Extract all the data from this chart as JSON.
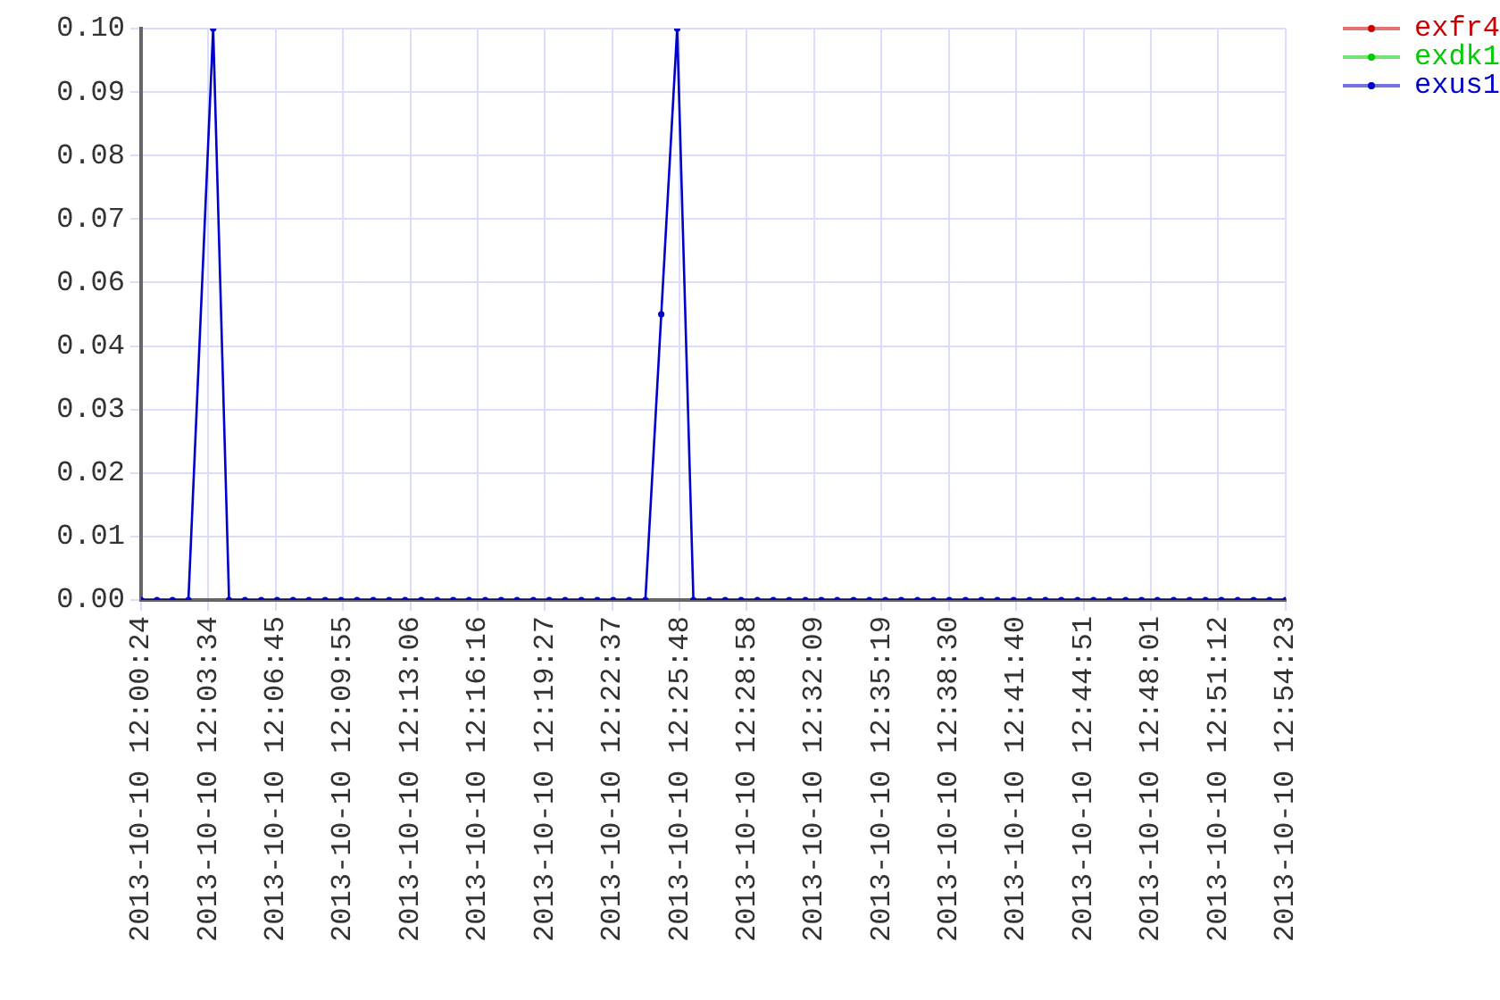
{
  "chart_data": {
    "type": "line",
    "x": [
      "2013-10-10T12:00:24",
      "2013-10-10T12:01:09",
      "2013-10-10T12:01:53",
      "2013-10-10T12:02:38",
      "2013-10-10T12:03:48",
      "2013-10-10T12:04:33",
      "2013-10-10T12:05:18",
      "2013-10-10T12:06:04",
      "2013-10-10T12:06:49",
      "2013-10-10T12:07:34",
      "2013-10-10T12:08:19",
      "2013-10-10T12:09:05",
      "2013-10-10T12:09:50",
      "2013-10-10T12:10:35",
      "2013-10-10T12:11:21",
      "2013-10-10T12:12:06",
      "2013-10-10T12:12:51",
      "2013-10-10T12:13:37",
      "2013-10-10T12:14:22",
      "2013-10-10T12:15:07",
      "2013-10-10T12:15:52",
      "2013-10-10T12:16:38",
      "2013-10-10T12:17:23",
      "2013-10-10T12:18:08",
      "2013-10-10T12:18:54",
      "2013-10-10T12:19:39",
      "2013-10-10T12:20:24",
      "2013-10-10T12:21:10",
      "2013-10-10T12:21:55",
      "2013-10-10T12:22:40",
      "2013-10-10T12:23:25",
      "2013-10-10T12:24:11",
      "2013-10-10T12:24:56",
      "2013-10-10T12:25:41",
      "2013-10-10T12:26:27",
      "2013-10-10T12:27:12",
      "2013-10-10T12:27:57",
      "2013-10-10T12:28:42",
      "2013-10-10T12:29:28",
      "2013-10-10T12:30:13",
      "2013-10-10T12:30:58",
      "2013-10-10T12:31:44",
      "2013-10-10T12:32:29",
      "2013-10-10T12:33:14",
      "2013-10-10T12:34:00",
      "2013-10-10T12:34:45",
      "2013-10-10T12:35:30",
      "2013-10-10T12:36:15",
      "2013-10-10T12:37:01",
      "2013-10-10T12:37:46",
      "2013-10-10T12:38:31",
      "2013-10-10T12:39:17",
      "2013-10-10T12:40:02",
      "2013-10-10T12:40:47",
      "2013-10-10T12:41:33",
      "2013-10-10T12:42:18",
      "2013-10-10T12:43:03",
      "2013-10-10T12:43:48",
      "2013-10-10T12:44:34",
      "2013-10-10T12:45:19",
      "2013-10-10T12:46:04",
      "2013-10-10T12:46:50",
      "2013-10-10T12:47:35",
      "2013-10-10T12:48:20",
      "2013-10-10T12:49:06",
      "2013-10-10T12:49:51",
      "2013-10-10T12:50:36",
      "2013-10-10T12:51:21",
      "2013-10-10T12:52:07",
      "2013-10-10T12:52:52",
      "2013-10-10T12:53:37",
      "2013-10-10T12:54:23"
    ],
    "xlim": [
      "2013-10-10T12:00:24",
      "2013-10-10T12:54:23"
    ],
    "xticks": [
      {
        "value": "2013-10-10T12:00:24",
        "label": "2013-10-10 12:00:24"
      },
      {
        "value": "2013-10-10T12:03:34",
        "label": "2013-10-10 12:03:34"
      },
      {
        "value": "2013-10-10T12:06:45",
        "label": "2013-10-10 12:06:45"
      },
      {
        "value": "2013-10-10T12:09:55",
        "label": "2013-10-10 12:09:55"
      },
      {
        "value": "2013-10-10T12:13:06",
        "label": "2013-10-10 12:13:06"
      },
      {
        "value": "2013-10-10T12:16:16",
        "label": "2013-10-10 12:16:16"
      },
      {
        "value": "2013-10-10T12:19:27",
        "label": "2013-10-10 12:19:27"
      },
      {
        "value": "2013-10-10T12:22:37",
        "label": "2013-10-10 12:22:37"
      },
      {
        "value": "2013-10-10T12:25:48",
        "label": "2013-10-10 12:25:48"
      },
      {
        "value": "2013-10-10T12:28:58",
        "label": "2013-10-10 12:28:58"
      },
      {
        "value": "2013-10-10T12:32:09",
        "label": "2013-10-10 12:32:09"
      },
      {
        "value": "2013-10-10T12:35:19",
        "label": "2013-10-10 12:35:19"
      },
      {
        "value": "2013-10-10T12:38:30",
        "label": "2013-10-10 12:38:30"
      },
      {
        "value": "2013-10-10T12:41:40",
        "label": "2013-10-10 12:41:40"
      },
      {
        "value": "2013-10-10T12:44:51",
        "label": "2013-10-10 12:44:51"
      },
      {
        "value": "2013-10-10T12:48:01",
        "label": "2013-10-10 12:48:01"
      },
      {
        "value": "2013-10-10T12:51:12",
        "label": "2013-10-10 12:51:12"
      },
      {
        "value": "2013-10-10T12:54:23",
        "label": "2013-10-10 12:54:23"
      }
    ],
    "ylim": [
      0,
      0.1
    ],
    "yticks": [
      {
        "value": 0,
        "label": "0.00"
      },
      {
        "value": 0.01111,
        "label": "0.01"
      },
      {
        "value": 0.02222,
        "label": "0.02"
      },
      {
        "value": 0.03333,
        "label": "0.03"
      },
      {
        "value": 0.04444,
        "label": "0.04"
      },
      {
        "value": 0.05556,
        "label": "0.06"
      },
      {
        "value": 0.06667,
        "label": "0.07"
      },
      {
        "value": 0.07778,
        "label": "0.08"
      },
      {
        "value": 0.08889,
        "label": "0.09"
      },
      {
        "value": 0.1,
        "label": "0.10"
      }
    ],
    "series": [
      {
        "name": "exfr4",
        "color": "#cc0000",
        "values": [
          null,
          null,
          null,
          null,
          null,
          null,
          null,
          null,
          null,
          null,
          null,
          null,
          null,
          null,
          null,
          null,
          null,
          null,
          null,
          null,
          null,
          null,
          null,
          null,
          null,
          null,
          null,
          null,
          null,
          null,
          null,
          null,
          null,
          null,
          null,
          null,
          null,
          null,
          null,
          null,
          null,
          null,
          null,
          null,
          null,
          null,
          null,
          null,
          null,
          null,
          null,
          null,
          null,
          null,
          null,
          null,
          null,
          null,
          null,
          null,
          null,
          null,
          null,
          null,
          null,
          null,
          null,
          null,
          null,
          null,
          null,
          null
        ]
      },
      {
        "name": "exdk1",
        "color": "#00cc00",
        "values": [
          null,
          null,
          null,
          null,
          null,
          null,
          null,
          null,
          null,
          null,
          null,
          null,
          null,
          null,
          null,
          null,
          null,
          null,
          null,
          null,
          null,
          null,
          null,
          null,
          null,
          null,
          null,
          null,
          null,
          null,
          null,
          null,
          null,
          null,
          null,
          null,
          null,
          null,
          null,
          null,
          null,
          null,
          null,
          null,
          null,
          null,
          null,
          null,
          null,
          null,
          null,
          null,
          null,
          null,
          null,
          null,
          null,
          null,
          null,
          null,
          null,
          null,
          null,
          null,
          null,
          null,
          null,
          null,
          null,
          null,
          null,
          null
        ]
      },
      {
        "name": "exus1",
        "color": "#0000cc",
        "values": [
          0,
          0,
          0,
          0,
          0.1,
          0,
          0,
          0,
          0,
          0,
          0,
          0,
          0,
          0,
          0,
          0,
          0,
          0,
          0,
          0,
          0,
          0,
          0,
          0,
          0,
          0,
          0,
          0,
          0,
          0,
          0,
          0,
          0.05,
          0.1,
          0,
          0,
          0,
          0,
          0,
          0,
          0,
          0,
          0,
          0,
          0,
          0,
          0,
          0,
          0,
          0,
          0,
          0,
          0,
          0,
          0,
          0,
          0,
          0,
          0,
          0,
          0,
          0,
          0,
          0,
          0,
          0,
          0,
          0,
          0,
          0,
          0,
          0
        ]
      }
    ],
    "grid": true,
    "legend": "top right",
    "marker": "circle"
  }
}
